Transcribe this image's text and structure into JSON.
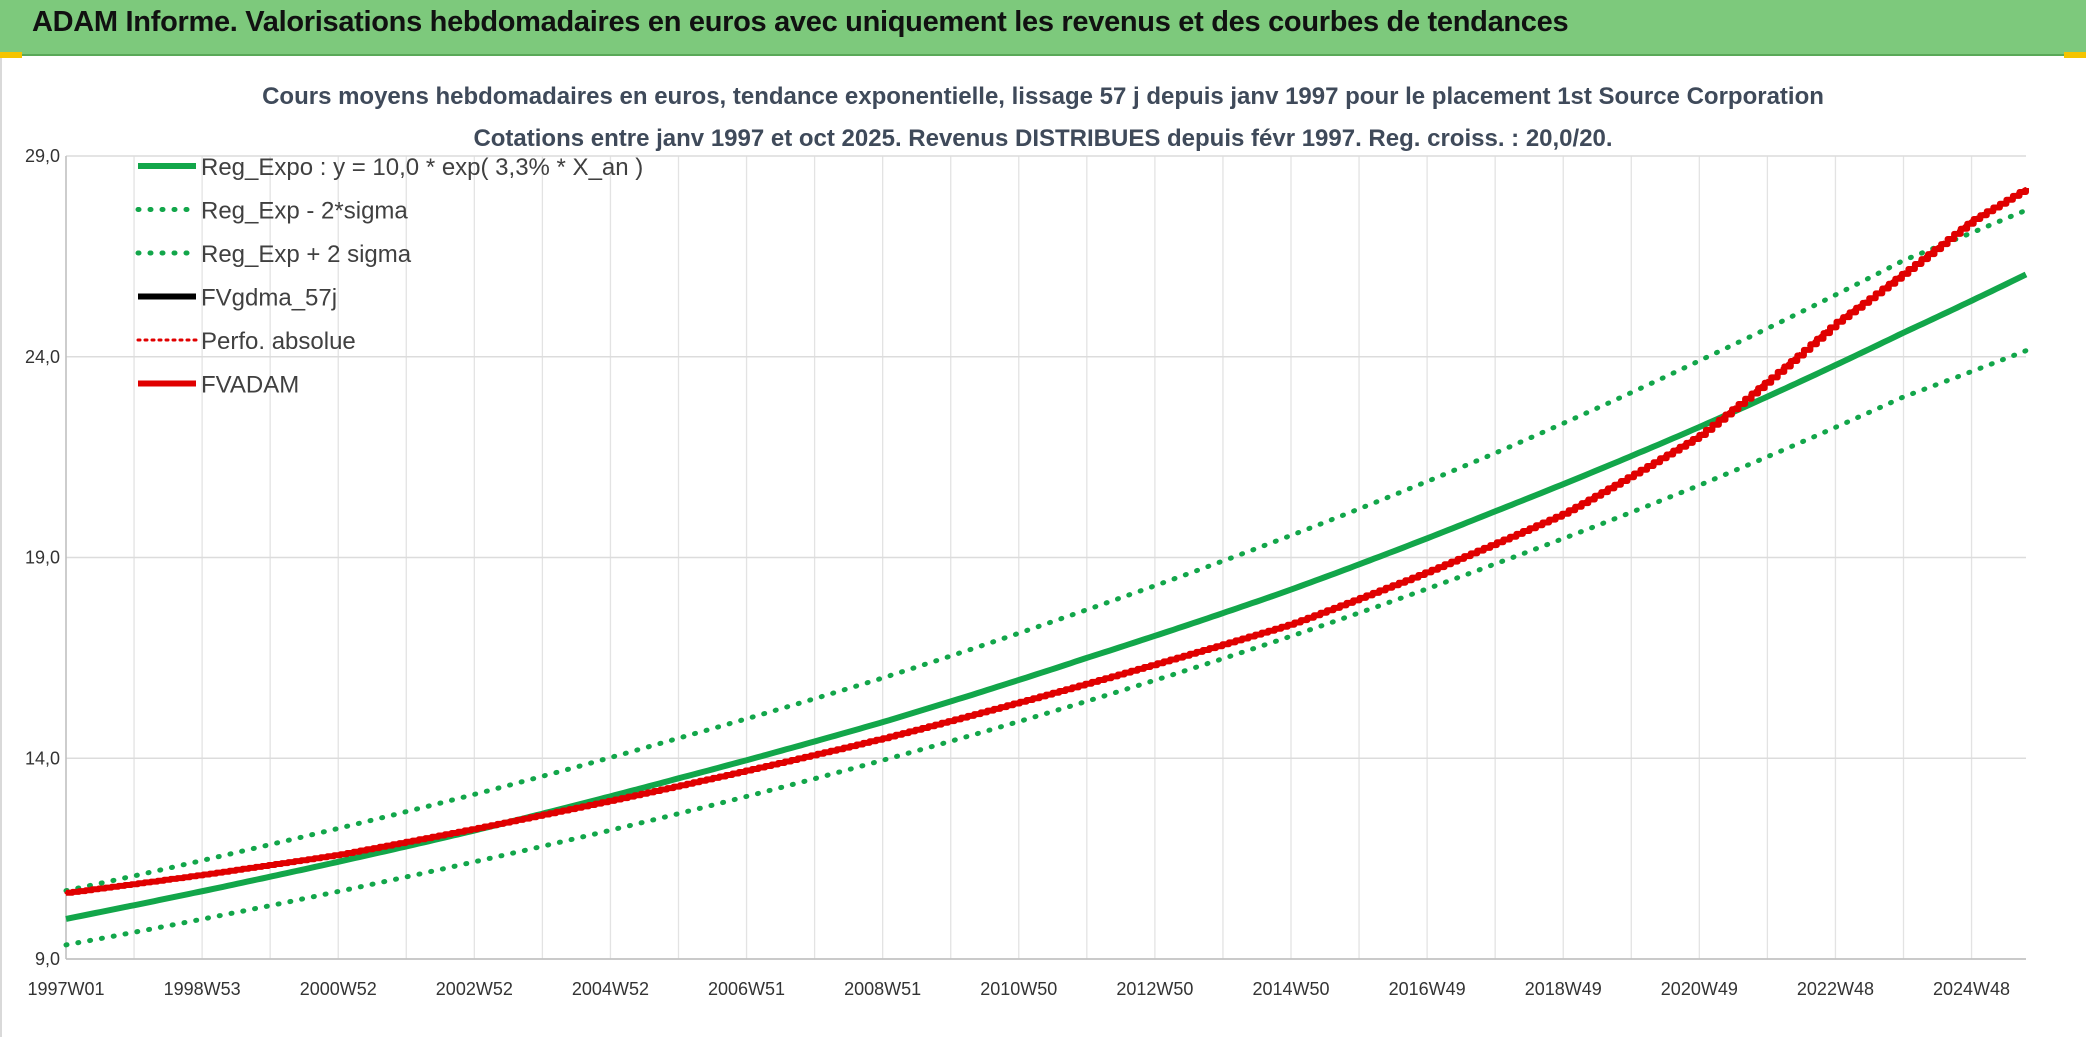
{
  "header": {
    "title": "ADAM Informe. Valorisations hebdomadaires en euros avec uniquement les revenus et des courbes de tendances"
  },
  "chart_data": {
    "type": "line",
    "title_line1": "Cours moyens hebdomadaires en euros, tendance exponentielle, lissage 57 j depuis janv 1997 pour le placement 1st Source Corporation",
    "title_line2": "Cotations entre janv 1997 et oct 2025. Revenus DISTRIBUES depuis févr 1997. Reg. croiss. : 20,0/20.",
    "xlabel": "",
    "ylabel": "",
    "ylim": [
      9.0,
      29.0
    ],
    "xlim": [
      1997.0,
      2025.8
    ],
    "y_ticks": [
      "9,0",
      "14,0",
      "19,0",
      "24,0",
      "29,0"
    ],
    "y_tick_values": [
      9.0,
      14.0,
      19.0,
      24.0,
      29.0
    ],
    "x_ticks": [
      "1997W01",
      "1998W53",
      "2000W52",
      "2002W52",
      "2004W52",
      "2006W51",
      "2008W51",
      "2010W50",
      "2012W50",
      "2014W50",
      "2016W49",
      "2018W49",
      "2020W49",
      "2022W48",
      "2024W48"
    ],
    "x_tick_years": [
      1997.0,
      1999.0,
      2001.0,
      2003.0,
      2005.0,
      2007.0,
      2009.0,
      2011.0,
      2013.0,
      2015.0,
      2017.0,
      2019.0,
      2021.0,
      2023.0,
      2025.0
    ],
    "grid": true,
    "legend_position": "top-left",
    "series": [
      {
        "name": "Reg_Expo : y = 10,0 * exp( 3,3% *  X_an )",
        "color": "#12a64a",
        "style": "solid",
        "x": [
          1997.0,
          2000.0,
          2003.0,
          2006.0,
          2009.0,
          2012.0,
          2015.0,
          2018.0,
          2021.0,
          2024.0,
          2025.8
        ],
        "values": [
          10.0,
          11.05,
          12.2,
          13.5,
          14.9,
          16.5,
          18.2,
          20.15,
          22.25,
          24.6,
          26.05
        ]
      },
      {
        "name": "Reg_Exp - 2*sigma",
        "color": "#12a64a",
        "style": "dotted",
        "x": [
          1997.0,
          2000.0,
          2003.0,
          2006.0,
          2009.0,
          2012.0,
          2015.0,
          2018.0,
          2021.0,
          2024.0,
          2025.8
        ],
        "values": [
          9.35,
          10.33,
          11.42,
          12.62,
          13.95,
          15.42,
          17.04,
          18.84,
          20.8,
          23.0,
          24.15
        ]
      },
      {
        "name": "Reg_Exp + 2 sigma",
        "color": "#12a64a",
        "style": "dotted",
        "x": [
          1997.0,
          2000.0,
          2003.0,
          2006.0,
          2009.0,
          2012.0,
          2015.0,
          2018.0,
          2021.0,
          2024.0,
          2025.8
        ],
        "values": [
          10.7,
          11.85,
          13.1,
          14.5,
          16.0,
          17.7,
          19.55,
          21.6,
          23.9,
          26.4,
          27.65
        ]
      },
      {
        "name": "FVgdma_57j",
        "color": "#000000",
        "style": "solid",
        "x": [
          1997.0,
          1999.0,
          2001.0,
          2003.0,
          2005.0,
          2007.0,
          2009.0,
          2011.0,
          2013.0,
          2015.0,
          2017.0,
          2019.0,
          2021.0,
          2023.0,
          2025.0,
          2025.8
        ],
        "values": [
          10.65,
          11.1,
          11.6,
          12.25,
          12.95,
          13.7,
          14.5,
          15.4,
          16.35,
          17.35,
          18.65,
          20.1,
          22.05,
          24.85,
          27.4,
          28.2
        ]
      },
      {
        "name": "Perfo. absolue",
        "color": "#e00000",
        "style": "dotted",
        "x": [
          1997.0,
          1999.0,
          2001.0,
          2003.0,
          2005.0,
          2007.0,
          2009.0,
          2011.0,
          2013.0,
          2015.0,
          2017.0,
          2019.0,
          2021.0,
          2023.0,
          2025.0,
          2025.8
        ],
        "values": [
          10.65,
          11.1,
          11.6,
          12.25,
          12.95,
          13.7,
          14.5,
          15.4,
          16.35,
          17.35,
          18.65,
          20.1,
          22.05,
          24.85,
          27.4,
          28.2
        ]
      },
      {
        "name": "FVADAM",
        "color": "#e00000",
        "style": "solid",
        "x": [
          1997.0,
          1999.0,
          2001.0,
          2003.0,
          2005.0,
          2007.0,
          2009.0,
          2011.0,
          2013.0,
          2015.0,
          2017.0,
          2019.0,
          2021.0,
          2023.0,
          2025.0,
          2025.8
        ],
        "values": [
          10.65,
          11.1,
          11.6,
          12.25,
          12.95,
          13.7,
          14.5,
          15.4,
          16.35,
          17.35,
          18.65,
          20.1,
          22.05,
          24.85,
          27.4,
          28.2
        ]
      }
    ]
  }
}
